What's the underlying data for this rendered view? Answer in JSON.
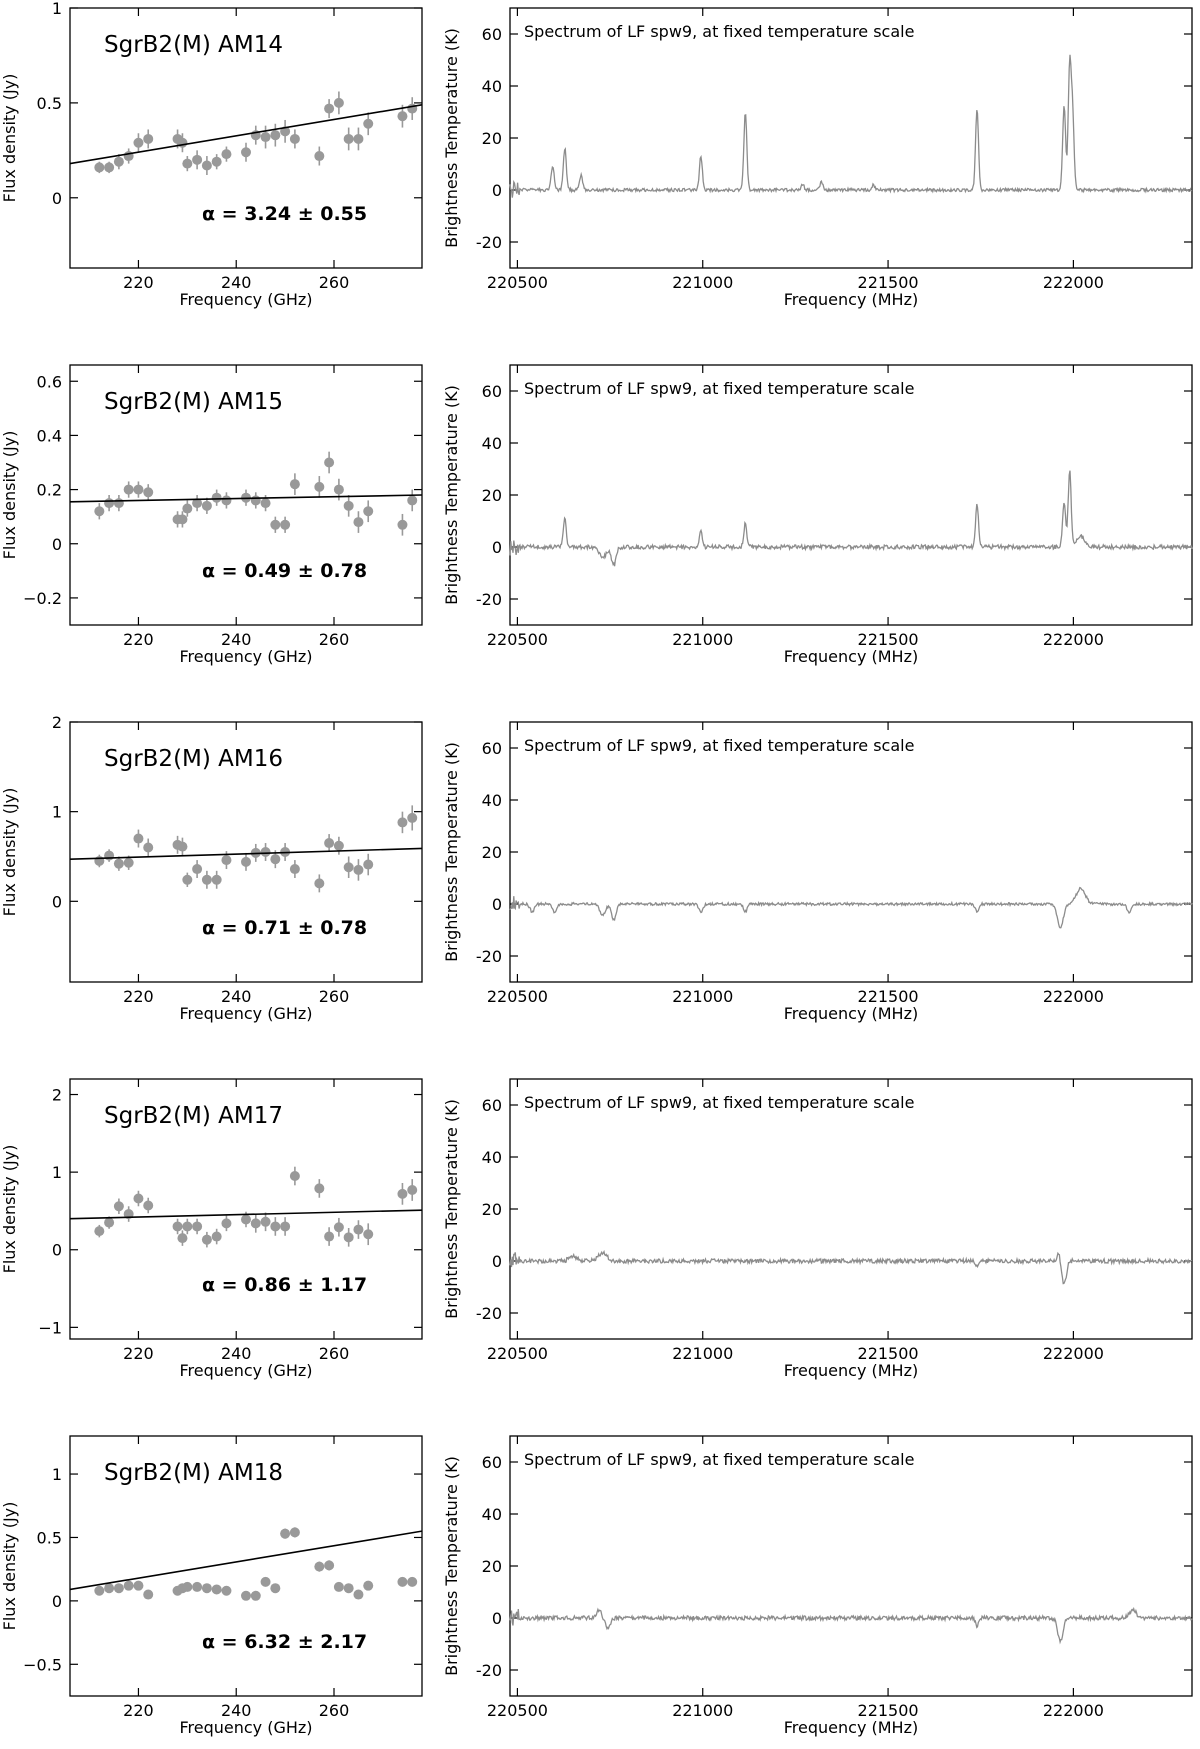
{
  "figure": {
    "colors": {
      "data": "#999999",
      "fit": "#000000",
      "spectrum": "#8c8c8c",
      "axes": "#000000"
    }
  },
  "chart_data": [
    {
      "type": "scatter",
      "title": "SgrB2(M) AM14",
      "alpha_label": "α = 3.24 ± 0.55",
      "xlabel": "Frequency (GHz)",
      "ylabel": "Flux density (Jy)",
      "xlim": [
        206,
        278
      ],
      "ylim": [
        -0.37,
        1.0
      ],
      "xticks": [
        220,
        240,
        260
      ],
      "yticks": [
        0,
        0.5,
        1
      ],
      "ytick_labels": [
        "0",
        "0.5",
        "1"
      ],
      "x": [
        212,
        214,
        216,
        218,
        220,
        222,
        228,
        229,
        230,
        232,
        234,
        236,
        238,
        242,
        244,
        246,
        248,
        250,
        252,
        257,
        259,
        261,
        263,
        265,
        267,
        274,
        276
      ],
      "y": [
        0.16,
        0.16,
        0.19,
        0.22,
        0.29,
        0.31,
        0.31,
        0.29,
        0.18,
        0.2,
        0.17,
        0.19,
        0.23,
        0.24,
        0.33,
        0.32,
        0.33,
        0.35,
        0.31,
        0.22,
        0.47,
        0.5,
        0.31,
        0.31,
        0.39,
        0.43,
        0.47
      ],
      "yerr": [
        0.03,
        0.03,
        0.04,
        0.04,
        0.05,
        0.05,
        0.05,
        0.05,
        0.04,
        0.05,
        0.05,
        0.04,
        0.04,
        0.05,
        0.05,
        0.06,
        0.06,
        0.06,
        0.05,
        0.05,
        0.05,
        0.06,
        0.06,
        0.06,
        0.06,
        0.06,
        0.06
      ],
      "fit": {
        "x": [
          206,
          278
        ],
        "y": [
          0.18,
          0.49
        ]
      }
    },
    {
      "type": "scatter",
      "title": "SgrB2(M) AM15",
      "alpha_label": "α = 0.49 ± 0.78",
      "xlabel": "Frequency (GHz)",
      "ylabel": "Flux density (Jy)",
      "xlim": [
        206,
        278
      ],
      "ylim": [
        -0.3,
        0.66
      ],
      "xticks": [
        220,
        240,
        260
      ],
      "yticks": [
        -0.2,
        0,
        0.2,
        0.4,
        0.6
      ],
      "ytick_labels": [
        "−0.2",
        "0",
        "0.2",
        "0.4",
        "0.6"
      ],
      "x": [
        212,
        214,
        216,
        218,
        220,
        222,
        228,
        229,
        230,
        232,
        234,
        236,
        238,
        242,
        244,
        246,
        248,
        250,
        252,
        257,
        259,
        261,
        263,
        265,
        267,
        274,
        276
      ],
      "y": [
        0.12,
        0.15,
        0.15,
        0.2,
        0.2,
        0.19,
        0.09,
        0.09,
        0.13,
        0.15,
        0.14,
        0.17,
        0.16,
        0.17,
        0.16,
        0.15,
        0.07,
        0.07,
        0.22,
        0.21,
        0.3,
        0.2,
        0.14,
        0.08,
        0.12,
        0.07,
        0.16
      ],
      "yerr": [
        0.03,
        0.03,
        0.03,
        0.03,
        0.03,
        0.03,
        0.03,
        0.03,
        0.03,
        0.03,
        0.03,
        0.03,
        0.03,
        0.03,
        0.03,
        0.03,
        0.03,
        0.03,
        0.04,
        0.04,
        0.04,
        0.04,
        0.04,
        0.04,
        0.04,
        0.04,
        0.04
      ],
      "fit": {
        "x": [
          206,
          278
        ],
        "y": [
          0.155,
          0.18
        ]
      }
    },
    {
      "type": "scatter",
      "title": "SgrB2(M) AM16",
      "alpha_label": "α = 0.71 ± 0.78",
      "xlabel": "Frequency (GHz)",
      "ylabel": "Flux density (Jy)",
      "xlim": [
        206,
        278
      ],
      "ylim": [
        -0.9,
        2.0
      ],
      "xticks": [
        220,
        240,
        260
      ],
      "yticks": [
        0,
        1,
        2
      ],
      "ytick_labels": [
        "0",
        "1",
        "2"
      ],
      "x": [
        212,
        214,
        216,
        218,
        220,
        222,
        228,
        229,
        230,
        232,
        234,
        236,
        238,
        242,
        244,
        246,
        248,
        250,
        252,
        257,
        259,
        261,
        263,
        265,
        267,
        274,
        276
      ],
      "y": [
        0.45,
        0.51,
        0.42,
        0.43,
        0.7,
        0.6,
        0.63,
        0.61,
        0.24,
        0.36,
        0.24,
        0.24,
        0.46,
        0.44,
        0.54,
        0.55,
        0.47,
        0.55,
        0.36,
        0.2,
        0.65,
        0.62,
        0.38,
        0.35,
        0.41,
        0.88,
        0.93
      ],
      "yerr": [
        0.07,
        0.07,
        0.08,
        0.08,
        0.1,
        0.1,
        0.1,
        0.1,
        0.08,
        0.1,
        0.1,
        0.1,
        0.1,
        0.1,
        0.1,
        0.1,
        0.1,
        0.1,
        0.1,
        0.1,
        0.1,
        0.1,
        0.12,
        0.12,
        0.12,
        0.12,
        0.14
      ],
      "fit": {
        "x": [
          206,
          278
        ],
        "y": [
          0.47,
          0.59
        ]
      }
    },
    {
      "type": "scatter",
      "title": "SgrB2(M) AM17",
      "alpha_label": "α = 0.86 ± 1.17",
      "xlabel": "Frequency (GHz)",
      "ylabel": "Flux density (Jy)",
      "xlim": [
        206,
        278
      ],
      "ylim": [
        -1.15,
        2.2
      ],
      "xticks": [
        220,
        240,
        260
      ],
      "yticks": [
        -1,
        0,
        1,
        2
      ],
      "ytick_labels": [
        "−1",
        "0",
        "1",
        "2"
      ],
      "x": [
        212,
        214,
        216,
        218,
        220,
        222,
        228,
        229,
        230,
        232,
        234,
        236,
        238,
        242,
        244,
        246,
        248,
        250,
        252,
        257,
        259,
        261,
        263,
        265,
        267,
        274,
        276
      ],
      "y": [
        0.24,
        0.35,
        0.56,
        0.46,
        0.66,
        0.57,
        0.3,
        0.15,
        0.3,
        0.3,
        0.13,
        0.17,
        0.34,
        0.39,
        0.34,
        0.36,
        0.3,
        0.3,
        0.95,
        0.79,
        0.17,
        0.29,
        0.16,
        0.26,
        0.2,
        0.72,
        0.77
      ],
      "yerr": [
        0.08,
        0.08,
        0.1,
        0.1,
        0.1,
        0.1,
        0.1,
        0.1,
        0.1,
        0.1,
        0.1,
        0.1,
        0.1,
        0.1,
        0.12,
        0.12,
        0.12,
        0.12,
        0.12,
        0.12,
        0.12,
        0.12,
        0.12,
        0.12,
        0.14,
        0.14,
        0.14
      ],
      "fit": {
        "x": [
          206,
          278
        ],
        "y": [
          0.4,
          0.51
        ]
      }
    },
    {
      "type": "scatter",
      "title": "SgrB2(M) AM18",
      "alpha_label": "α = 6.32 ± 2.17",
      "xlabel": "Frequency (GHz)",
      "ylabel": "Flux density (Jy)",
      "xlim": [
        206,
        278
      ],
      "ylim": [
        -0.75,
        1.3
      ],
      "xticks": [
        220,
        240,
        260
      ],
      "yticks": [
        -0.5,
        0,
        0.5,
        1
      ],
      "ytick_labels": [
        "−0.5",
        "0",
        "0.5",
        "1"
      ],
      "x": [
        212,
        214,
        216,
        218,
        220,
        222,
        228,
        229,
        230,
        232,
        234,
        236,
        238,
        242,
        244,
        246,
        248,
        250,
        252,
        257,
        259,
        261,
        263,
        265,
        267,
        274,
        276
      ],
      "y": [
        0.08,
        0.1,
        0.1,
        0.12,
        0.12,
        0.05,
        0.08,
        0.1,
        0.11,
        0.11,
        0.1,
        0.09,
        0.08,
        0.04,
        0.04,
        0.15,
        0.1,
        0.53,
        0.54,
        0.27,
        0.28,
        0.11,
        0.1,
        0.05,
        0.12,
        0.15,
        0.15
      ],
      "yerr": [
        0.02,
        0.02,
        0.02,
        0.02,
        0.02,
        0.02,
        0.02,
        0.02,
        0.02,
        0.02,
        0.02,
        0.02,
        0.02,
        0.02,
        0.02,
        0.03,
        0.03,
        0.04,
        0.04,
        0.04,
        0.04,
        0.03,
        0.03,
        0.03,
        0.03,
        0.03,
        0.03
      ],
      "fit": {
        "x": [
          206,
          278
        ],
        "y": [
          0.09,
          0.55
        ]
      }
    },
    {
      "type": "line",
      "title": "Spectrum of LF spw9, at fixed temperature scale",
      "xlabel": "Frequency (MHz)",
      "ylabel": "Brightness Temperature (K)",
      "xlim": [
        220480,
        222320
      ],
      "ylim": [
        -30,
        70
      ],
      "xticks": [
        220500,
        221000,
        221500,
        222000
      ],
      "yticks": [
        -20,
        0,
        20,
        40,
        60
      ],
      "lines": [
        [
          220595,
          9,
          4
        ],
        [
          220628,
          16,
          4
        ],
        [
          220672,
          6,
          4
        ],
        [
          220995,
          13,
          4
        ],
        [
          221115,
          30,
          4
        ],
        [
          221270,
          2,
          4
        ],
        [
          221320,
          3,
          4
        ],
        [
          221460,
          2,
          4
        ],
        [
          221740,
          31,
          4
        ],
        [
          221975,
          32,
          4
        ],
        [
          221990,
          47,
          4
        ],
        [
          221998,
          28,
          4
        ]
      ],
      "baseline_noise": 0.6
    },
    {
      "type": "line",
      "title": "Spectrum of LF spw9, at fixed temperature scale",
      "xlabel": "Frequency (MHz)",
      "ylabel": "Brightness Temperature (K)",
      "xlim": [
        220480,
        222320
      ],
      "ylim": [
        -30,
        70
      ],
      "xticks": [
        220500,
        221000,
        221500,
        222000
      ],
      "yticks": [
        -20,
        0,
        20,
        40,
        60
      ],
      "lines": [
        [
          220628,
          11,
          4
        ],
        [
          220995,
          6,
          4
        ],
        [
          221115,
          9,
          4
        ],
        [
          221740,
          16,
          4
        ],
        [
          221975,
          17,
          4
        ],
        [
          221990,
          29,
          4
        ],
        [
          222020,
          4,
          12
        ],
        [
          220730,
          -4,
          10
        ],
        [
          220760,
          -7,
          6
        ]
      ],
      "baseline_noise": 0.8
    },
    {
      "type": "line",
      "title": "Spectrum of LF spw9, at fixed temperature scale",
      "xlabel": "Frequency (MHz)",
      "ylabel": "Brightness Temperature (K)",
      "xlim": [
        220480,
        222320
      ],
      "ylim": [
        -30,
        70
      ],
      "xticks": [
        220500,
        221000,
        221500,
        222000
      ],
      "yticks": [
        -20,
        0,
        20,
        40,
        60
      ],
      "lines": [
        [
          220540,
          -3,
          6
        ],
        [
          220600,
          -3,
          6
        ],
        [
          220730,
          -4,
          8
        ],
        [
          220760,
          -6,
          6
        ],
        [
          220995,
          -3,
          6
        ],
        [
          221115,
          -3,
          5
        ],
        [
          221740,
          -3,
          5
        ],
        [
          221965,
          -9,
          8
        ],
        [
          222020,
          6,
          12
        ],
        [
          222150,
          -3,
          6
        ]
      ],
      "baseline_noise": 0.5
    },
    {
      "type": "line",
      "title": "Spectrum of LF spw9, at fixed temperature scale",
      "xlabel": "Frequency (MHz)",
      "ylabel": "Brightness Temperature (K)",
      "xlim": [
        220480,
        222320
      ],
      "ylim": [
        -30,
        70
      ],
      "xticks": [
        220500,
        221000,
        221500,
        222000
      ],
      "yticks": [
        -20,
        0,
        20,
        40,
        60
      ],
      "lines": [
        [
          220650,
          2,
          10
        ],
        [
          220730,
          3,
          12
        ],
        [
          221740,
          -2,
          5
        ],
        [
          221960,
          3,
          4
        ],
        [
          221975,
          -9,
          6
        ]
      ],
      "baseline_noise": 0.8
    },
    {
      "type": "line",
      "title": "Spectrum of LF spw9, at fixed temperature scale",
      "xlabel": "Frequency (MHz)",
      "ylabel": "Brightness Temperature (K)",
      "xlim": [
        220480,
        222320
      ],
      "ylim": [
        -30,
        70
      ],
      "xticks": [
        220500,
        221000,
        221500,
        222000
      ],
      "yticks": [
        -20,
        0,
        20,
        40,
        60
      ],
      "lines": [
        [
          220720,
          3,
          6
        ],
        [
          220745,
          -4,
          6
        ],
        [
          221740,
          -3,
          5
        ],
        [
          221965,
          -9,
          7
        ],
        [
          222160,
          3,
          10
        ]
      ],
      "baseline_noise": 0.8
    }
  ]
}
